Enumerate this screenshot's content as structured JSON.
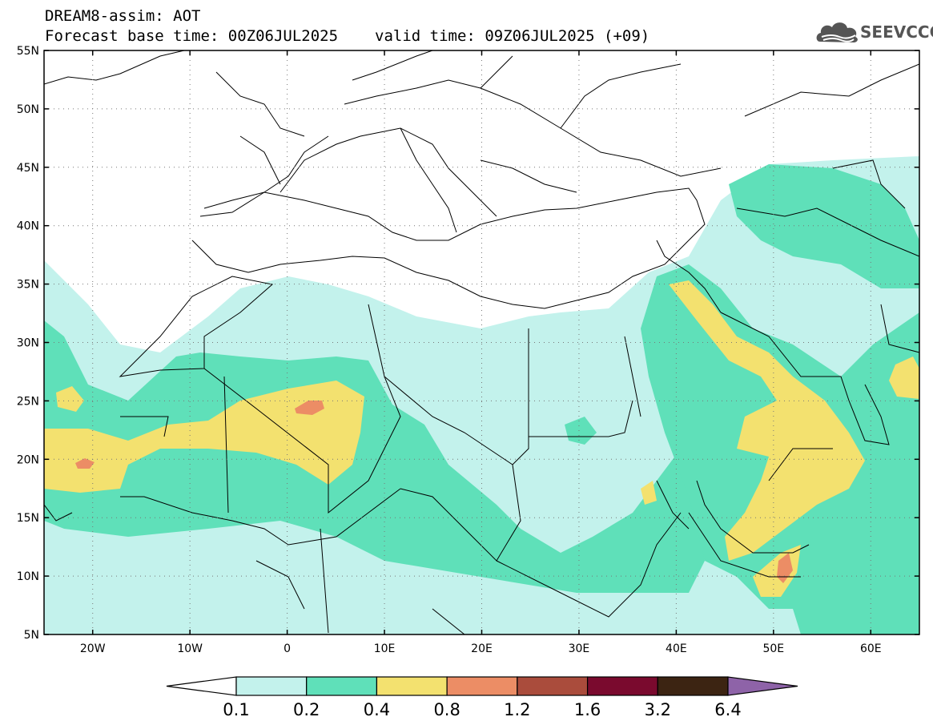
{
  "header": {
    "line1": "DREAM8-assim: AOT",
    "base_time": "Forecast base time: 00Z06JUL2025",
    "valid_time": "valid time: 09Z06JUL2025 (+09)"
  },
  "logo": {
    "text": "SEEVCCC",
    "icon": "cloud-logo-icon",
    "color": "#555555"
  },
  "map": {
    "variable": "AOT",
    "extent": {
      "lon_min": -25,
      "lon_max": 65,
      "lat_min": 5,
      "lat_max": 55
    },
    "lat_labels": [
      "5N",
      "10N",
      "15N",
      "20N",
      "25N",
      "30N",
      "35N",
      "40N",
      "45N",
      "50N",
      "55N"
    ],
    "lon_labels": [
      "20W",
      "10W",
      "0",
      "10E",
      "20E",
      "30E",
      "40E",
      "50E",
      "60E"
    ],
    "gridlines": "dotted"
  },
  "colorbar": {
    "labels": [
      "0.1",
      "0.2",
      "0.4",
      "0.8",
      "1.2",
      "1.6",
      "3.2",
      "6.4"
    ],
    "colors": [
      "#c3f2ec",
      "#5fe0b9",
      "#f3e16f",
      "#ec8d65",
      "#aa4c3c",
      "#7a0a2e",
      "#3c2412"
    ],
    "over_color": "#8e63a8",
    "under_color": "#ffffff"
  }
}
